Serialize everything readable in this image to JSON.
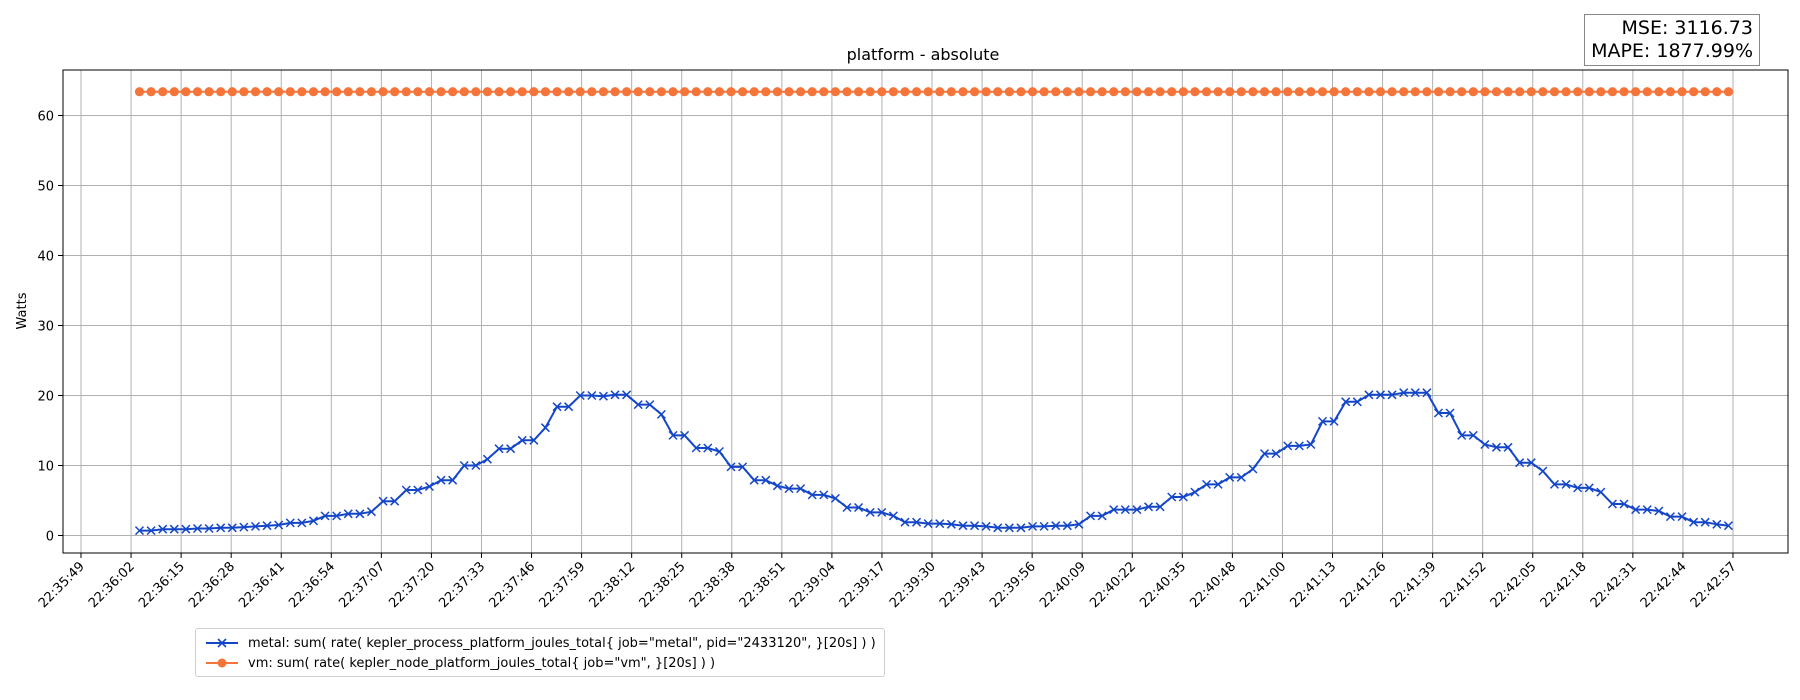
{
  "stats": {
    "mse": "MSE: 3116.73",
    "mape": "MAPE: 1877.99%"
  },
  "chart_data": {
    "type": "line",
    "title": "platform - absolute",
    "xlabel": "",
    "ylabel": "Watts",
    "grid": true,
    "legend_placement": "below",
    "x_tick_labels": [
      "22:35:49",
      "22:36:02",
      "22:36:15",
      "22:36:28",
      "22:36:41",
      "22:36:54",
      "22:37:07",
      "22:37:20",
      "22:37:33",
      "22:37:46",
      "22:37:59",
      "22:38:12",
      "22:38:25",
      "22:38:38",
      "22:38:51",
      "22:39:04",
      "22:39:17",
      "22:39:30",
      "22:39:43",
      "22:39:56",
      "22:40:09",
      "22:40:22",
      "22:40:35",
      "22:40:48",
      "22:41:00",
      "22:41:13",
      "22:41:26",
      "22:41:39",
      "22:41:52",
      "22:42:05",
      "22:42:18",
      "22:42:31",
      "22:42:44",
      "22:42:57"
    ],
    "y_ticks": [
      0,
      10,
      20,
      30,
      40,
      50,
      60
    ],
    "ylim": [
      -2.5,
      66.5
    ],
    "series": [
      {
        "name": "metal: sum( rate( kepler_process_platform_joules_total{ job=\"metal\", pid=\"2433120\", }[20s] ) )",
        "color": "#1446c8",
        "marker": "x",
        "values": [
          0.7,
          0.7,
          0.9,
          0.9,
          0.9,
          1.0,
          1.0,
          1.1,
          1.1,
          1.2,
          1.3,
          1.4,
          1.5,
          1.8,
          1.8,
          2.1,
          2.8,
          2.8,
          3.1,
          3.1,
          3.4,
          4.9,
          4.9,
          6.5,
          6.5,
          7.0,
          7.9,
          7.9,
          10.0,
          10.0,
          10.9,
          12.4,
          12.4,
          13.6,
          13.6,
          15.4,
          18.4,
          18.4,
          20.0,
          20.0,
          19.9,
          20.1,
          20.1,
          18.7,
          18.7,
          17.3,
          14.3,
          14.3,
          12.5,
          12.5,
          12.0,
          9.8,
          9.8,
          7.9,
          7.9,
          7.1,
          6.7,
          6.7,
          5.8,
          5.8,
          5.3,
          4.0,
          4.0,
          3.3,
          3.3,
          2.8,
          1.9,
          1.9,
          1.7,
          1.7,
          1.6,
          1.4,
          1.4,
          1.3,
          1.1,
          1.1,
          1.1,
          1.3,
          1.3,
          1.4,
          1.4,
          1.6,
          2.8,
          2.8,
          3.7,
          3.7,
          3.7,
          4.1,
          4.1,
          5.5,
          5.5,
          6.2,
          7.3,
          7.3,
          8.3,
          8.3,
          9.5,
          11.7,
          11.7,
          12.8,
          12.8,
          13.0,
          16.3,
          16.3,
          19.1,
          19.1,
          20.1,
          20.1,
          20.1,
          20.4,
          20.4,
          20.4,
          17.5,
          17.5,
          14.3,
          14.3,
          13.0,
          12.6,
          12.6,
          10.4,
          10.4,
          9.2,
          7.3,
          7.3,
          6.8,
          6.8,
          6.2,
          4.5,
          4.5,
          3.7,
          3.7,
          3.5,
          2.7,
          2.7,
          1.9,
          1.9,
          1.6,
          1.4
        ]
      },
      {
        "name": "vm: sum( rate( kepler_node_platform_joules_total{ job=\"vm\", }[20s] ) )",
        "color": "#f5743a",
        "marker": "o",
        "constant_value": 63.4,
        "point_count": 138
      }
    ]
  }
}
